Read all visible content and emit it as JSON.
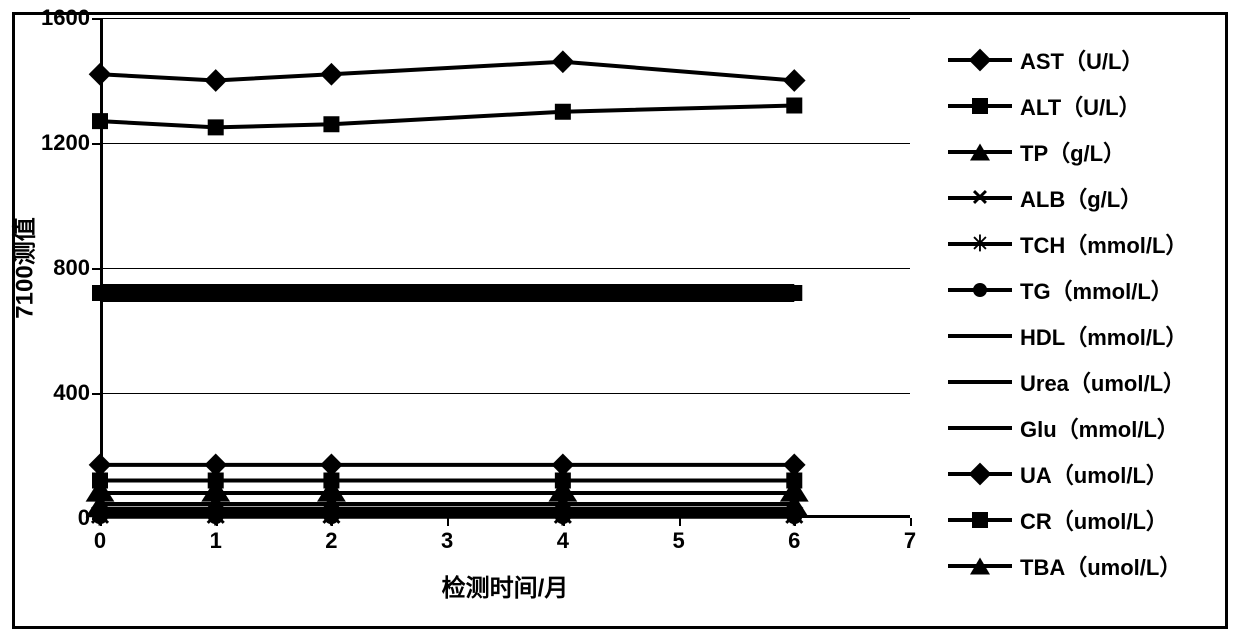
{
  "chart": {
    "type": "line",
    "x_axis_title": "检测时间/月",
    "y_axis_title": "7100测值",
    "x_values": [
      0,
      1,
      2,
      4,
      6
    ],
    "xlim": [
      0,
      7
    ],
    "xtick_positions": [
      0,
      1,
      2,
      3,
      4,
      5,
      6,
      7
    ],
    "xtick_labels": [
      "0",
      "1",
      "2",
      "3",
      "4",
      "5",
      "6",
      "7"
    ],
    "ylim": [
      0,
      1600
    ],
    "ytick_positions": [
      0,
      400,
      800,
      1200,
      1600
    ],
    "ytick_labels": [
      "0",
      "400",
      "800",
      "1200",
      "1600"
    ],
    "grid_y": [
      400,
      800,
      1200,
      1600
    ],
    "background_color": "#ffffff",
    "grid_color": "#000000",
    "line_width": 4,
    "marker_size": 16,
    "title_fontsize": 24,
    "label_fontsize": 22,
    "series": [
      {
        "name": "AST（U/L）",
        "marker": "diamond",
        "color": "#000000",
        "values": [
          170,
          170,
          170,
          170,
          170
        ]
      },
      {
        "name": "ALT（U/L）",
        "marker": "square",
        "color": "#000000",
        "values": [
          120,
          120,
          120,
          120,
          120
        ]
      },
      {
        "name": "TP（g/L）",
        "marker": "triangle",
        "color": "#000000",
        "values": [
          80,
          80,
          80,
          80,
          80
        ]
      },
      {
        "name": "ALB（g/L）",
        "marker": "x",
        "color": "#000000",
        "values": [
          45,
          45,
          45,
          45,
          45
        ]
      },
      {
        "name": "TCH（mmol/L）",
        "marker": "star",
        "color": "#000000",
        "values": [
          10,
          10,
          10,
          10,
          10
        ]
      },
      {
        "name": "TG（mmol/L）",
        "marker": "dot",
        "color": "#000000",
        "values": [
          6,
          6,
          6,
          6,
          6
        ]
      },
      {
        "name": "HDL（mmol/L）",
        "marker": "none",
        "color": "#000000",
        "values": [
          4,
          4,
          4,
          4,
          4
        ]
      },
      {
        "name": "Urea（umol/L）",
        "marker": "none",
        "color": "#000000",
        "values": [
          18,
          18,
          18,
          18,
          18
        ]
      },
      {
        "name": "Glu（mmol/L）",
        "marker": "none",
        "color": "#000000",
        "values": [
          14,
          14,
          14,
          14,
          14
        ]
      },
      {
        "name": "UA（umol/L）",
        "marker": "diamond",
        "color": "#000000",
        "values": [
          1420,
          1400,
          1420,
          1460,
          1400
        ]
      },
      {
        "name": "CR（umol/L）",
        "marker": "square",
        "color": "#000000",
        "values": [
          1270,
          1250,
          1260,
          1300,
          1320
        ]
      },
      {
        "name": "TBA（umol/L）",
        "marker": "triangle",
        "color": "#000000",
        "values": [
          30,
          30,
          30,
          30,
          30
        ]
      }
    ],
    "band_series": {
      "marker": "square",
      "color": "#000000",
      "values": [
        720,
        720,
        720,
        720,
        720
      ],
      "line_width": 18
    }
  }
}
